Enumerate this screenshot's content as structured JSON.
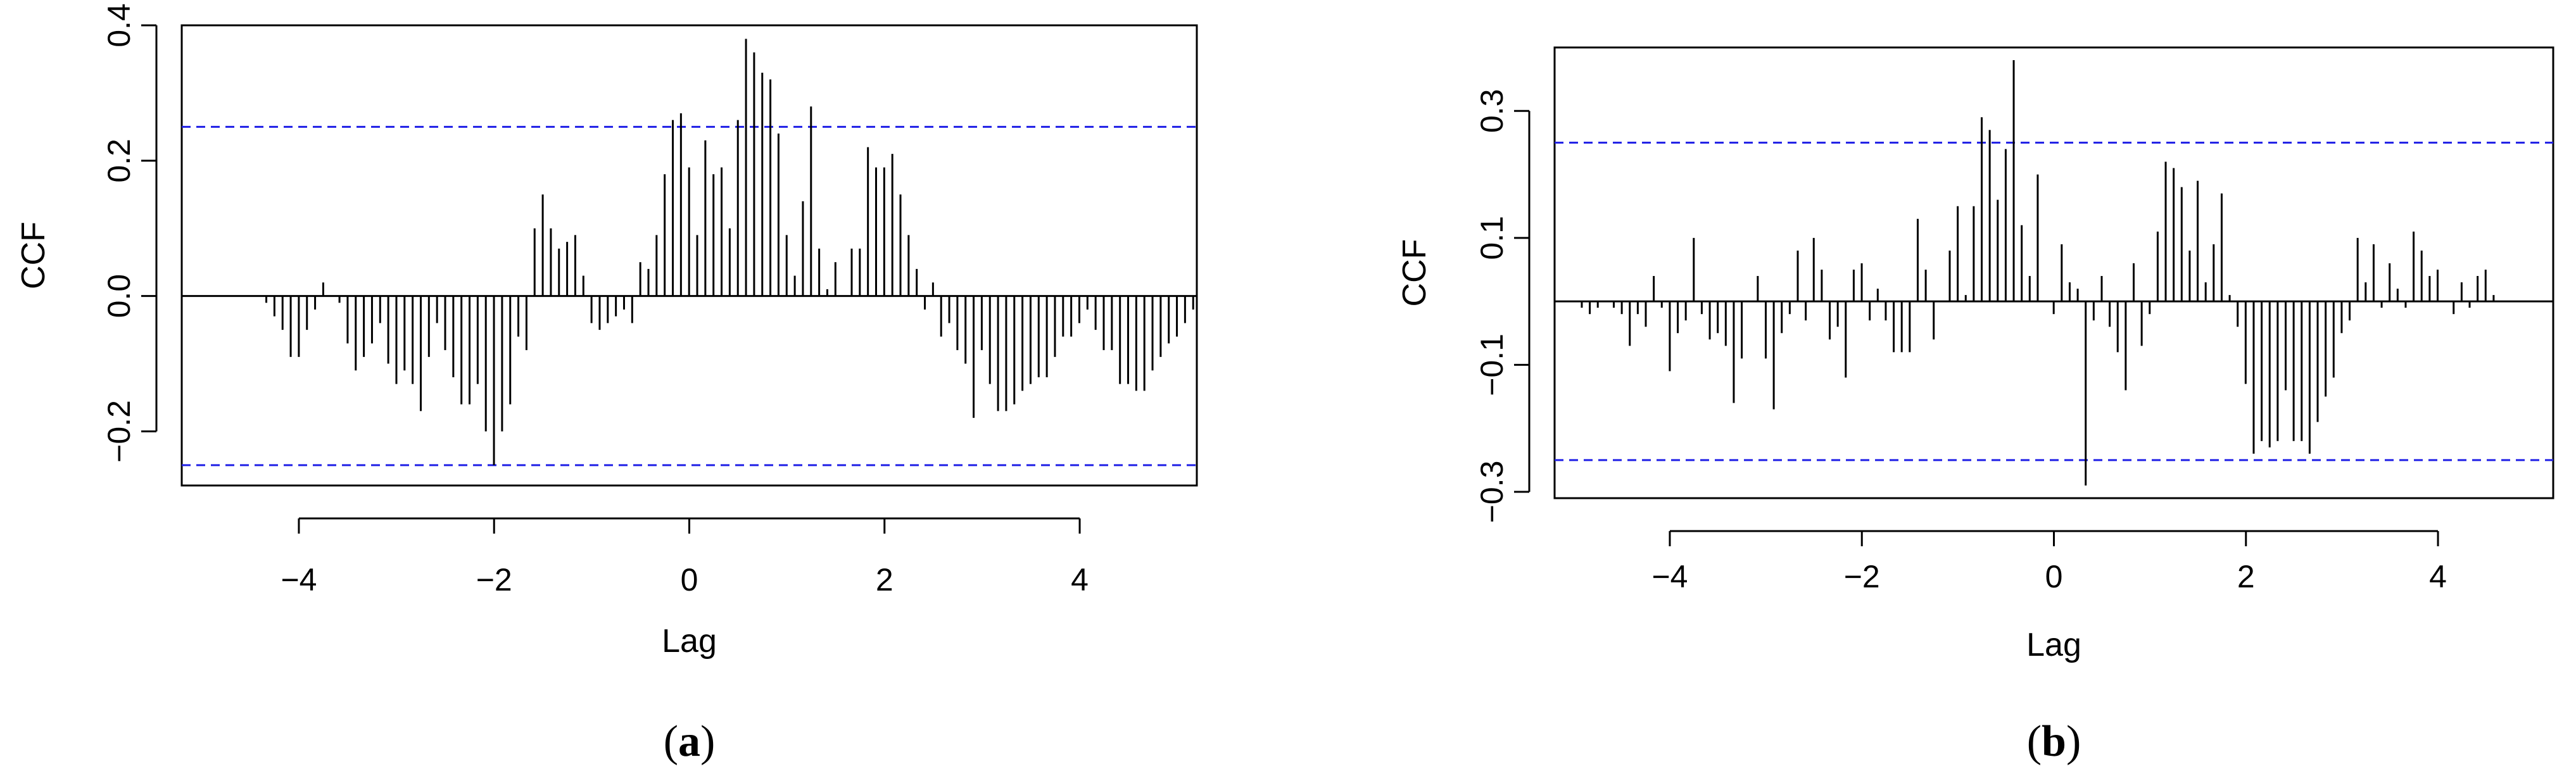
{
  "chart_data": [
    {
      "type": "bar",
      "panel_label": "a",
      "xlabel": "Lag",
      "ylabel": "CCF",
      "xlim": [
        -5.2,
        5.2
      ],
      "ylim": [
        -0.28,
        0.4
      ],
      "x_ticks": [
        -4,
        -2,
        0,
        2,
        4
      ],
      "x_tick_labels": [
        "−4",
        "−2",
        "0",
        "2",
        "4"
      ],
      "y_ticks": [
        -0.2,
        0.0,
        0.2,
        0.4
      ],
      "y_tick_labels": [
        "−0.2",
        "0.0",
        "0.2",
        "0.4"
      ],
      "confidence_bounds": [
        0.25,
        -0.25
      ],
      "lag_start": -5.0,
      "lag_step": 0.0833,
      "values": [
        0.0,
        0.0,
        0.0,
        0.0,
        0.0,
        0.0,
        0.0,
        0.0,
        -0.01,
        -0.03,
        -0.05,
        -0.09,
        -0.09,
        -0.05,
        -0.02,
        0.02,
        0.0,
        -0.01,
        -0.07,
        -0.11,
        -0.09,
        -0.07,
        -0.04,
        -0.1,
        -0.13,
        -0.11,
        -0.13,
        -0.17,
        -0.09,
        -0.04,
        -0.08,
        -0.12,
        -0.16,
        -0.16,
        -0.13,
        -0.2,
        -0.25,
        -0.2,
        -0.16,
        -0.06,
        -0.08,
        0.1,
        0.15,
        0.1,
        0.07,
        0.08,
        0.09,
        0.03,
        -0.04,
        -0.05,
        -0.04,
        -0.03,
        -0.02,
        -0.04,
        0.05,
        0.04,
        0.09,
        0.18,
        0.26,
        0.27,
        0.19,
        0.09,
        0.23,
        0.18,
        0.19,
        0.1,
        0.26,
        0.38,
        0.36,
        0.33,
        0.32,
        0.24,
        0.09,
        0.03,
        0.14,
        0.28,
        0.07,
        0.01,
        0.05,
        0.0,
        0.07,
        0.07,
        0.22,
        0.19,
        0.19,
        0.21,
        0.15,
        0.09,
        0.04,
        -0.02,
        0.02,
        -0.06,
        -0.04,
        -0.08,
        -0.1,
        -0.18,
        -0.08,
        -0.13,
        -0.17,
        -0.17,
        -0.16,
        -0.14,
        -0.13,
        -0.12,
        -0.12,
        -0.09,
        -0.06,
        -0.06,
        -0.04,
        -0.02,
        -0.05,
        -0.08,
        -0.08,
        -0.13,
        -0.13,
        -0.14,
        -0.14,
        -0.11,
        -0.09,
        -0.07,
        -0.06,
        -0.04,
        -0.02
      ]
    },
    {
      "type": "bar",
      "panel_label": "b",
      "xlabel": "Lag",
      "ylabel": "CCF",
      "xlim": [
        -5.2,
        5.2
      ],
      "ylim": [
        -0.31,
        0.4
      ],
      "x_ticks": [
        -4,
        -2,
        0,
        2,
        4
      ],
      "x_tick_labels": [
        "−4",
        "−2",
        "0",
        "2",
        "4"
      ],
      "y_ticks": [
        -0.3,
        -0.1,
        0.1,
        0.3
      ],
      "y_tick_labels": [
        "−0.3",
        "−0.1",
        "0.1",
        "0.3"
      ],
      "confidence_bounds": [
        0.25,
        -0.25
      ],
      "lag_start": -5.0,
      "lag_step": 0.0833,
      "values": [
        0.0,
        -0.01,
        -0.02,
        -0.01,
        0.0,
        -0.01,
        -0.02,
        -0.07,
        -0.02,
        -0.04,
        0.04,
        -0.01,
        -0.11,
        -0.05,
        -0.03,
        0.1,
        -0.02,
        -0.06,
        -0.05,
        -0.07,
        -0.16,
        -0.09,
        0.0,
        0.04,
        -0.09,
        -0.17,
        -0.05,
        -0.02,
        0.08,
        -0.03,
        0.1,
        0.05,
        -0.06,
        -0.04,
        -0.12,
        0.05,
        0.06,
        -0.03,
        0.02,
        -0.03,
        -0.08,
        -0.08,
        -0.08,
        0.13,
        0.05,
        -0.06,
        0.0,
        0.08,
        0.15,
        0.01,
        0.15,
        0.29,
        0.27,
        0.16,
        0.24,
        0.38,
        0.12,
        0.04,
        0.2,
        0.0,
        -0.02,
        0.09,
        0.03,
        0.02,
        -0.29,
        -0.03,
        0.04,
        -0.04,
        -0.08,
        -0.14,
        0.06,
        -0.07,
        -0.02,
        0.11,
        0.22,
        0.21,
        0.18,
        0.08,
        0.19,
        0.03,
        0.09,
        0.17,
        0.01,
        -0.04,
        -0.13,
        -0.24,
        -0.22,
        -0.23,
        -0.22,
        -0.14,
        -0.22,
        -0.22,
        -0.24,
        -0.19,
        -0.15,
        -0.12,
        -0.05,
        -0.03,
        0.1,
        0.03,
        0.09,
        -0.01,
        0.06,
        0.02,
        -0.01,
        0.11,
        0.08,
        0.04,
        0.05,
        0.0,
        -0.02,
        0.03,
        -0.01,
        0.04,
        0.05,
        0.01
      ]
    }
  ]
}
